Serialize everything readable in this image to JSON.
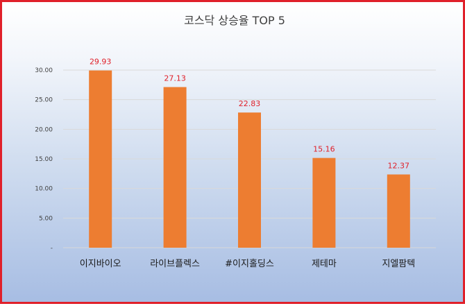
{
  "chart_data": {
    "type": "bar",
    "title": "코스닥 상승율 TOP 5",
    "xlabel": "",
    "ylabel": "",
    "categories": [
      "이지바이오",
      "라이브플렉스",
      "#이지홀딩스",
      "제테마",
      "지엘팜텍"
    ],
    "values": [
      29.93,
      27.13,
      22.83,
      15.16,
      12.37
    ],
    "value_labels": [
      "29.93",
      "27.13",
      "22.83",
      "15.16",
      "12.37"
    ],
    "ylim": [
      0,
      30
    ],
    "yticks": [
      0,
      5,
      10,
      15,
      20,
      25,
      30
    ],
    "ytick_labels": [
      "-",
      "5.00",
      "10.00",
      "15.00",
      "20.00",
      "25.00",
      "30.00"
    ],
    "grid": true,
    "legend": "none",
    "colors": {
      "bar": "#ed7d31",
      "value_label": "#e0202a",
      "grid": "#d9d9d9",
      "border": "#e0202a"
    }
  }
}
